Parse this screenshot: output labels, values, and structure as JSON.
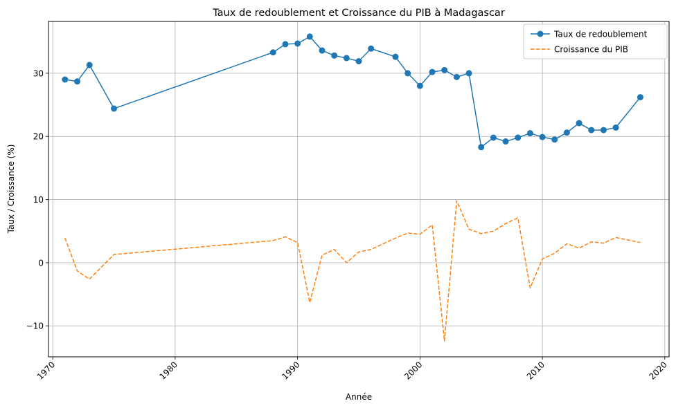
{
  "chart_data": {
    "type": "line",
    "title": "Taux de redoublement et Croissance du PIB à Madagascar",
    "xlabel": "Année",
    "ylabel": "Taux / Croissance (%)",
    "xlim": [
      1969.65,
      2020.35
    ],
    "ylim": [
      -14.9,
      38.2
    ],
    "xticks": [
      1970,
      1980,
      1990,
      2000,
      2010,
      2020
    ],
    "yticks": [
      -10,
      0,
      10,
      20,
      30
    ],
    "grid": true,
    "legend_position": "top-right",
    "series": [
      {
        "name": "Taux de redoublement",
        "color": "#1f77b4",
        "style": "solid",
        "marker": "circle",
        "x": [
          1971,
          1972,
          1973,
          1975,
          1988,
          1989,
          1990,
          1991,
          1992,
          1993,
          1994,
          1995,
          1996,
          1998,
          1999,
          2000,
          2001,
          2002,
          2003,
          2004,
          2005,
          2006,
          2007,
          2008,
          2009,
          2010,
          2011,
          2012,
          2013,
          2014,
          2015,
          2016,
          2018
        ],
        "values": [
          29.0,
          28.7,
          31.3,
          24.4,
          33.3,
          34.6,
          34.7,
          35.8,
          33.6,
          32.8,
          32.4,
          31.9,
          33.9,
          32.6,
          30.0,
          28.0,
          30.2,
          30.5,
          29.4,
          30.0,
          18.3,
          19.8,
          19.2,
          19.8,
          20.5,
          19.9,
          19.5,
          20.6,
          22.1,
          21.0,
          21.0,
          21.4,
          26.2
        ]
      },
      {
        "name": "Croissance du PIB",
        "color": "#ff7f0e",
        "style": "dashed",
        "marker": "none",
        "x": [
          1971,
          1972,
          1973,
          1975,
          1988,
          1989,
          1990,
          1991,
          1992,
          1993,
          1994,
          1995,
          1996,
          1998,
          1999,
          2000,
          2001,
          2002,
          2003,
          2004,
          2005,
          2006,
          2007,
          2008,
          2009,
          2010,
          2011,
          2012,
          2013,
          2014,
          2015,
          2016,
          2018
        ],
        "values": [
          3.9,
          -1.3,
          -2.6,
          1.3,
          3.5,
          4.1,
          3.2,
          -6.3,
          1.2,
          2.1,
          0.0,
          1.7,
          2.1,
          3.9,
          4.7,
          4.5,
          6.0,
          -12.4,
          9.8,
          5.3,
          4.6,
          5.0,
          6.2,
          7.1,
          -4.0,
          0.6,
          1.5,
          3.0,
          2.3,
          3.3,
          3.1,
          4.0,
          3.2
        ]
      }
    ]
  }
}
